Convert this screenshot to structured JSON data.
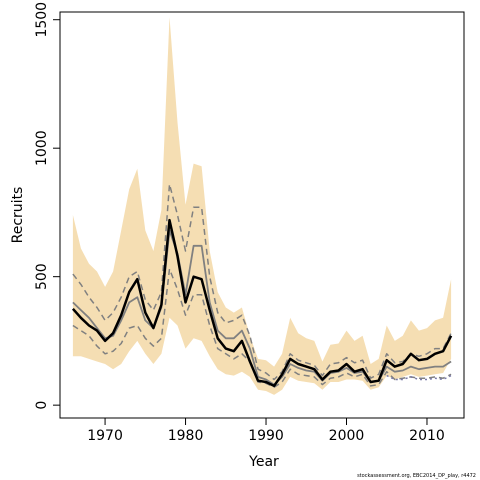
{
  "chart_data": {
    "type": "line",
    "xlabel": "Year",
    "ylabel": "Recruits",
    "xlim": [
      1964.4,
      2014.6
    ],
    "ylim": [
      -50,
      1530
    ],
    "x_ticks": [
      1970,
      1980,
      1990,
      2000,
      2010
    ],
    "y_ticks": [
      0,
      500,
      1000,
      1500
    ],
    "footnote": "stockassessment.org, EBC2014_DP_play, r4472",
    "colors": {
      "band": "#f5deb3",
      "median": "#000000",
      "inner": "#808080",
      "dashed": "#808080",
      "dotted": "#7a7aa8"
    },
    "x": [
      1966,
      1967,
      1968,
      1969,
      1970,
      1971,
      1972,
      1973,
      1974,
      1975,
      1976,
      1977,
      1978,
      1979,
      1980,
      1981,
      1982,
      1983,
      1984,
      1985,
      1986,
      1987,
      1988,
      1989,
      1990,
      1991,
      1992,
      1993,
      1994,
      1995,
      1996,
      1997,
      1998,
      1999,
      2000,
      2001,
      2002,
      2003,
      2004,
      2005,
      2006,
      2007,
      2008,
      2009,
      2010,
      2011,
      2012,
      2013
    ],
    "series": [
      {
        "role": "upper-band",
        "values": [
          740,
          610,
          550,
          520,
          460,
          520,
          680,
          840,
          920,
          680,
          600,
          760,
          1510,
          1100,
          780,
          940,
          930,
          600,
          440,
          380,
          360,
          380,
          270,
          180,
          175,
          150,
          200,
          340,
          280,
          260,
          250,
          170,
          235,
          240,
          290,
          250,
          270,
          160,
          180,
          310,
          250,
          270,
          330,
          290,
          300,
          330,
          340,
          490
        ]
      },
      {
        "role": "lower-band",
        "values": [
          190,
          190,
          180,
          170,
          160,
          140,
          160,
          210,
          250,
          200,
          160,
          200,
          340,
          310,
          220,
          260,
          250,
          190,
          140,
          120,
          115,
          130,
          110,
          60,
          55,
          40,
          60,
          110,
          95,
          90,
          85,
          60,
          90,
          90,
          100,
          100,
          95,
          60,
          70,
          115,
          100,
          110,
          120,
          110,
          115,
          120,
          125,
          180
        ]
      },
      {
        "role": "dashed-upper",
        "values": [
          510,
          470,
          420,
          380,
          330,
          360,
          420,
          500,
          520,
          410,
          370,
          440,
          860,
          740,
          600,
          770,
          770,
          500,
          360,
          320,
          330,
          350,
          270,
          140,
          125,
          100,
          130,
          200,
          175,
          165,
          155,
          115,
          160,
          165,
          185,
          165,
          175,
          105,
          120,
          200,
          165,
          170,
          200,
          190,
          200,
          220,
          220,
          280
        ]
      },
      {
        "role": "dashed-lower",
        "values": [
          310,
          290,
          270,
          230,
          200,
          210,
          240,
          300,
          310,
          260,
          230,
          260,
          530,
          450,
          350,
          430,
          430,
          310,
          220,
          200,
          180,
          200,
          170,
          90,
          85,
          70,
          90,
          140,
          120,
          115,
          110,
          80,
          105,
          110,
          125,
          110,
          120,
          75,
          80,
          130,
          100,
          105,
          110,
          105,
          105,
          110,
          105,
          120
        ]
      },
      {
        "role": "inner-line",
        "values": [
          400,
          370,
          340,
          300,
          260,
          270,
          330,
          400,
          420,
          330,
          300,
          380,
          680,
          590,
          430,
          620,
          620,
          400,
          290,
          260,
          260,
          290,
          220,
          110,
          100,
          80,
          110,
          160,
          145,
          135,
          130,
          95,
          125,
          130,
          145,
          125,
          130,
          90,
          95,
          150,
          130,
          135,
          150,
          140,
          145,
          150,
          150,
          170
        ]
      },
      {
        "role": "median",
        "values": [
          375,
          340,
          310,
          290,
          250,
          280,
          350,
          440,
          490,
          360,
          300,
          390,
          720,
          580,
          400,
          500,
          490,
          370,
          260,
          220,
          210,
          250,
          170,
          95,
          90,
          75,
          120,
          180,
          160,
          150,
          140,
          100,
          130,
          135,
          160,
          130,
          140,
          90,
          95,
          175,
          150,
          160,
          200,
          175,
          180,
          200,
          210,
          270
        ]
      },
      {
        "role": "dotted-lower",
        "values": [
          null,
          null,
          null,
          null,
          null,
          null,
          null,
          null,
          null,
          null,
          null,
          null,
          null,
          null,
          null,
          null,
          null,
          null,
          null,
          null,
          null,
          null,
          null,
          null,
          null,
          null,
          null,
          null,
          null,
          null,
          null,
          null,
          null,
          null,
          null,
          null,
          null,
          null,
          null,
          115,
          100,
          100,
          110,
          100,
          100,
          105,
          100,
          115
        ]
      }
    ]
  }
}
